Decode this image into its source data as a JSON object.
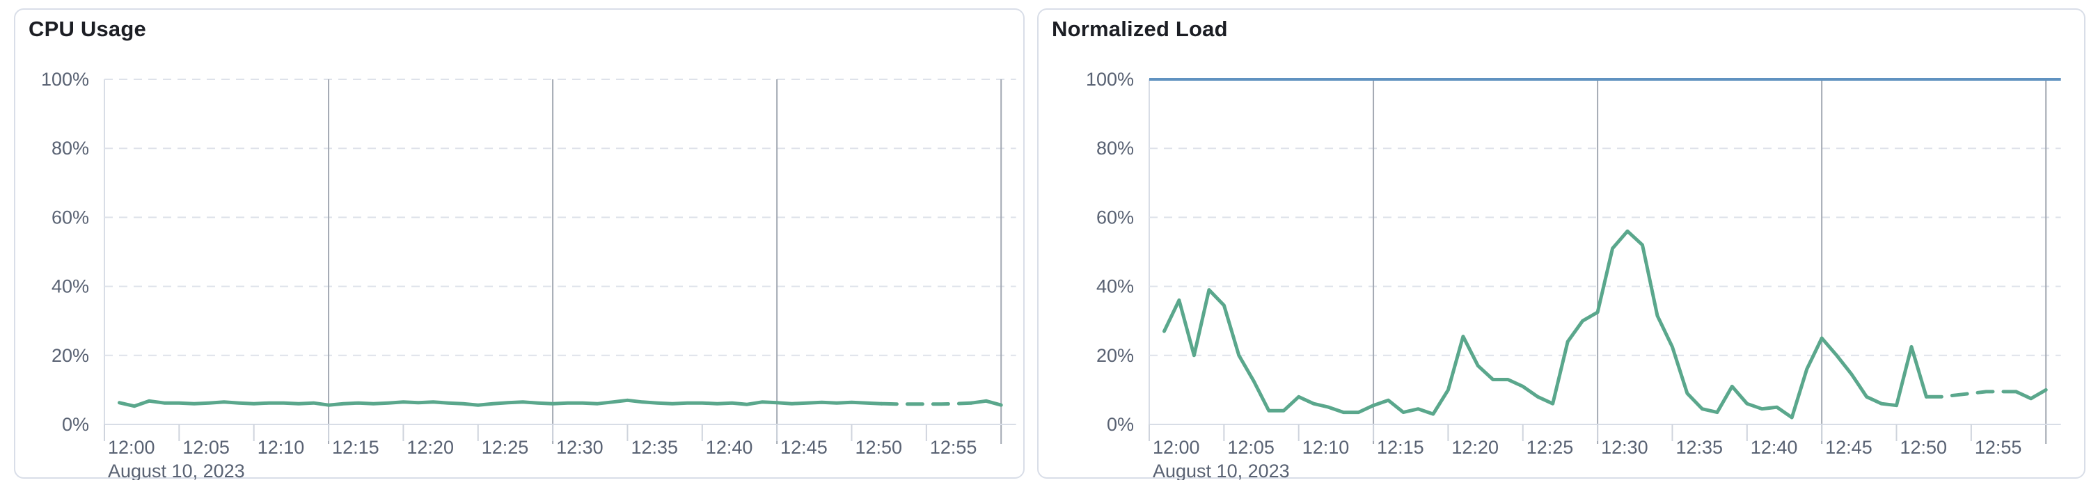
{
  "page": {
    "background": "#ffffff"
  },
  "theme": {
    "title_color": "#1C1E24",
    "axis_label_color": "#596273",
    "major_grid_color": "#A3A9B3",
    "minor_grid_color": "#DEE2EA",
    "axis_line_color": "#D8DDE6",
    "tick_color": "#CFD4DD",
    "card_border_color": "#D9DEE8",
    "series_green": "#5AA78C",
    "threshold_blue": "#6092C0"
  },
  "cards": [
    {
      "title": "CPU Usage"
    },
    {
      "title": "Normalized Load"
    }
  ],
  "chart_data": [
    {
      "type": "line",
      "title": "CPU Usage",
      "xlabel": "",
      "ylabel": "",
      "legend": "none",
      "x_axis": {
        "date_label": "August 10, 2023",
        "tick_labels": [
          "12:00",
          "12:05",
          "12:10",
          "12:15",
          "12:20",
          "12:25",
          "12:30",
          "12:35",
          "12:40",
          "12:45",
          "12:50",
          "12:55"
        ],
        "tick_interval_minutes": 5,
        "domain_minutes": [
          0,
          61
        ],
        "major_gridline_minutes": [
          15,
          30,
          45,
          60
        ]
      },
      "y_axis": {
        "tick_labels": [
          "0%",
          "20%",
          "40%",
          "60%",
          "80%",
          "100%"
        ],
        "lim": [
          0,
          100
        ],
        "grid": "dashed"
      },
      "series": [
        {
          "name": "cpu-usage",
          "color": "#5AA78C",
          "style": "line",
          "x_minute_start": 1,
          "x_minute_step": 1,
          "values": [
            6.3,
            5.3,
            6.8,
            6.2,
            6.2,
            6,
            6.2,
            6.5,
            6.2,
            6,
            6.2,
            6.2,
            6,
            6.2,
            5.6,
            6,
            6.2,
            6,
            6.2,
            6.5,
            6.3,
            6.5,
            6.2,
            6,
            5.6,
            6,
            6.3,
            6.5,
            6.2,
            6,
            6.2,
            6.2,
            6,
            6.5,
            7,
            6.5,
            6.2,
            6,
            6.2,
            6.2,
            6,
            6.2,
            5.8,
            6.5,
            6.3,
            6,
            6.2,
            6.4,
            6.2,
            6.4,
            6.2,
            6,
            5.9,
            5.9,
            5.9,
            5.9,
            6,
            6.2,
            6.8,
            5.6
          ],
          "dashed_segment_minutes": [
            52,
            58
          ]
        }
      ]
    },
    {
      "type": "line",
      "title": "Normalized Load",
      "xlabel": "",
      "ylabel": "",
      "legend": "none",
      "x_axis": {
        "date_label": "August 10, 2023",
        "tick_labels": [
          "12:00",
          "12:05",
          "12:10",
          "12:15",
          "12:20",
          "12:25",
          "12:30",
          "12:35",
          "12:40",
          "12:45",
          "12:50",
          "12:55"
        ],
        "tick_interval_minutes": 5,
        "domain_minutes": [
          0,
          61
        ],
        "major_gridline_minutes": [
          15,
          30,
          45,
          60
        ]
      },
      "y_axis": {
        "tick_labels": [
          "0%",
          "20%",
          "40%",
          "60%",
          "80%",
          "100%"
        ],
        "lim": [
          0,
          100
        ],
        "grid": "dashed"
      },
      "series": [
        {
          "name": "normalized-load",
          "color": "#5AA78C",
          "style": "line",
          "x_minute_start": 1,
          "x_minute_step": 1,
          "values": [
            27,
            36,
            20,
            39,
            34.5,
            20,
            12.5,
            4,
            4,
            8,
            6,
            5,
            3.5,
            3.5,
            5.5,
            7,
            3.5,
            4.5,
            3,
            10,
            25.5,
            17,
            13,
            13,
            11,
            8,
            6,
            24,
            30,
            32.5,
            51,
            56,
            52,
            31.5,
            22.5,
            9,
            4.5,
            3.5,
            11,
            6,
            4.5,
            5,
            2,
            16,
            25,
            20,
            14.5,
            8,
            6,
            5.5,
            22.5,
            8,
            8,
            8.5,
            9,
            9.5,
            9.5,
            9.5,
            7.5,
            10
          ],
          "dashed_segment_minutes": [
            52,
            58
          ]
        },
        {
          "name": "load-limit",
          "color": "#6092C0",
          "style": "horizontal-line",
          "value": 100
        }
      ]
    }
  ]
}
